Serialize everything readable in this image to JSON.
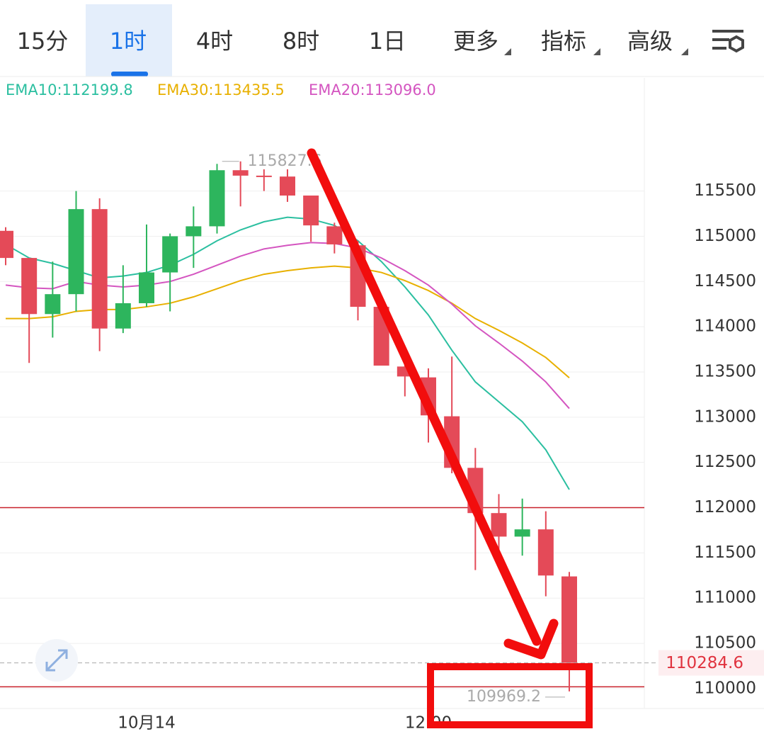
{
  "tabs": [
    "15分",
    "1时",
    "4时",
    "8时",
    "1日",
    "更多",
    "指标",
    "高级"
  ],
  "active_tab": 1,
  "chart_data": {
    "type": "candlestick",
    "categories": [
      null,
      null,
      null,
      null,
      null,
      null,
      "10月14",
      null,
      null,
      null,
      null,
      null,
      null,
      null,
      null,
      null,
      null,
      null,
      "12:00",
      null,
      null,
      null,
      null,
      null,
      null
    ],
    "open": [
      115060,
      114760,
      114140,
      114360,
      115300,
      113980,
      114260,
      114600,
      115000,
      115110,
      115730,
      115670,
      115660,
      115450,
      115110,
      114900,
      114220,
      113560,
      113440,
      113010,
      112440,
      111940,
      111680,
      111760,
      111240
    ],
    "high": [
      115100,
      114760,
      114720,
      115500,
      115420,
      114680,
      115130,
      115030,
      115330,
      115800,
      115827.6,
      115740,
      115740,
      115450,
      115150,
      114950,
      114240,
      113660,
      113540,
      113670,
      112660,
      112150,
      112100,
      111960,
      111290
    ],
    "low": [
      114680,
      113600,
      113880,
      114170,
      113730,
      113930,
      114220,
      114170,
      114650,
      115030,
      115330,
      115500,
      115380,
      114940,
      114810,
      114070,
      113570,
      113230,
      112720,
      112380,
      111310,
      111410,
      111470,
      111020,
      109969.2
    ],
    "close": [
      114760,
      114140,
      114360,
      115300,
      113980,
      114260,
      114600,
      115000,
      115110,
      115730,
      115670,
      115660,
      115450,
      115120,
      114910,
      114220,
      113570,
      113450,
      113020,
      112440,
      111940,
      111680,
      111760,
      111250,
      110284.6
    ],
    "up_color": "#2db55d",
    "down_color": "#e44a58",
    "series": [
      {
        "name": "EMA10:112199.8",
        "color": "#2bbfa0",
        "values": [
          114910,
          114760,
          114700,
          114620,
          114540,
          114560,
          114600,
          114680,
          114800,
          114950,
          115070,
          115160,
          115210,
          115190,
          115120,
          114950,
          114720,
          114440,
          114130,
          113740,
          113390,
          113170,
          112950,
          112640,
          112199.8
        ]
      },
      {
        "name": "EMA30:113435.5",
        "color": "#e8b000",
        "values": [
          114090,
          114090,
          114110,
          114170,
          114190,
          114190,
          114220,
          114260,
          114330,
          114420,
          114510,
          114580,
          114620,
          114650,
          114670,
          114650,
          114600,
          114510,
          114400,
          114260,
          114090,
          113960,
          113820,
          113660,
          113435.5
        ]
      },
      {
        "name": "EMA20:113096.0",
        "color": "#d455c0",
        "values": [
          114460,
          114430,
          114420,
          114500,
          114460,
          114440,
          114460,
          114500,
          114580,
          114680,
          114780,
          114860,
          114900,
          114930,
          114920,
          114870,
          114760,
          114620,
          114460,
          114250,
          114010,
          113820,
          113620,
          113390,
          113096.0
        ]
      }
    ],
    "high_marker": "115827.6",
    "low_marker": "109969.2",
    "hlines": [
      112000,
      110020
    ],
    "last_price": 110284.6,
    "ylim": [
      109780,
      116750
    ],
    "yticks": [
      110000,
      110500,
      111000,
      111500,
      112000,
      112500,
      113000,
      113500,
      114000,
      114500,
      115000,
      115500
    ],
    "grid": true
  }
}
